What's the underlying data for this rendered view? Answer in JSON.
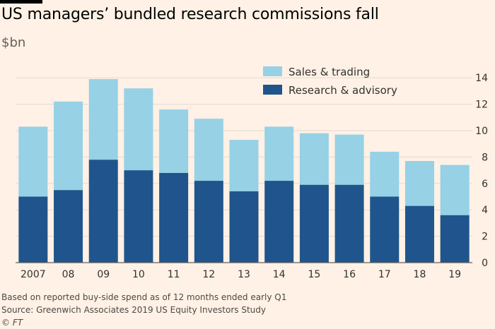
{
  "header": {
    "title": "US managers’ bundled research commissions fall",
    "subtitle": "$bn"
  },
  "footer": {
    "note": "Based on reported buy-side spend as of 12 months ended early Q1",
    "source": "Source: Greenwich Associates 2019 US Equity Investors Study",
    "credit": "© FT"
  },
  "colors": {
    "background": "#fff1e5",
    "sales_trading": "#96d1e6",
    "research_advisory": "#1f558c",
    "grid": "#e6d9ce",
    "axis": "#66605c",
    "text": "#33302e"
  },
  "chart_data": {
    "type": "bar",
    "stacked": true,
    "categories": [
      "2007",
      "08",
      "09",
      "10",
      "11",
      "12",
      "13",
      "14",
      "15",
      "16",
      "17",
      "18",
      "19"
    ],
    "series": [
      {
        "name": "Research & advisory",
        "color": "#1f558c",
        "values": [
          5.0,
          5.5,
          7.8,
          7.0,
          6.8,
          6.2,
          5.4,
          6.2,
          5.9,
          5.9,
          5.0,
          4.3,
          3.6
        ]
      },
      {
        "name": "Sales & trading",
        "color": "#96d1e6",
        "values": [
          5.3,
          6.7,
          6.1,
          6.2,
          4.8,
          4.7,
          3.9,
          4.1,
          3.9,
          3.8,
          3.4,
          3.4,
          3.8
        ]
      }
    ],
    "totals": [
      10.3,
      12.2,
      13.9,
      13.2,
      11.6,
      10.9,
      9.3,
      10.3,
      9.8,
      9.7,
      8.4,
      7.7,
      7.4
    ],
    "yticks": [
      0,
      2,
      4,
      6,
      8,
      10,
      12,
      14
    ],
    "ylim": [
      0,
      15
    ],
    "y_axis_side": "right",
    "grid": true,
    "legend": {
      "placement": "top-right",
      "order": [
        "Sales & trading",
        "Research & advisory"
      ]
    }
  }
}
